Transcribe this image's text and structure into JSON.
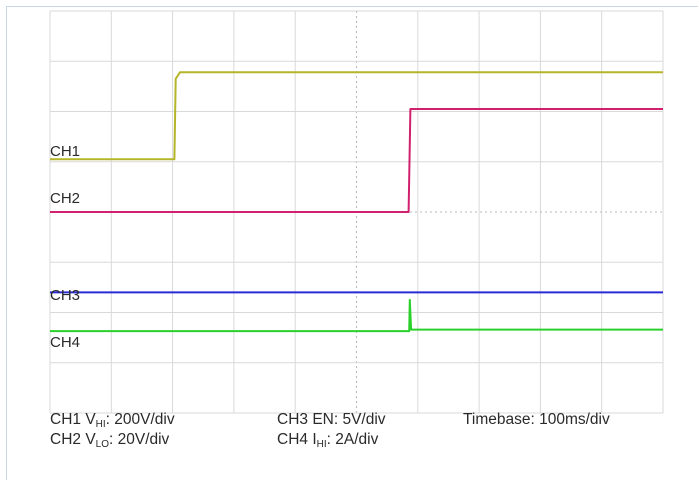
{
  "chart_data": {
    "type": "line",
    "title": "",
    "xlabel": "",
    "ylabel": "",
    "grid": true,
    "divisions": {
      "x": 10,
      "y": 8
    },
    "xlim": [
      0,
      10
    ],
    "ylim": [
      -4,
      4
    ],
    "series": [
      {
        "name": "CH1",
        "color": "#b5b52a",
        "points": [
          [
            0,
            1.05
          ],
          [
            2.03,
            1.05
          ],
          [
            2.05,
            2.65
          ],
          [
            2.12,
            2.78
          ],
          [
            10,
            2.78
          ]
        ]
      },
      {
        "name": "CH2",
        "color": "#d0206e",
        "points": [
          [
            0,
            0.0
          ],
          [
            5.85,
            0.0
          ],
          [
            5.88,
            2.05
          ],
          [
            10,
            2.05
          ]
        ]
      },
      {
        "name": "CH3",
        "color": "#2b2bd6",
        "points": [
          [
            0,
            -1.6
          ],
          [
            10,
            -1.6
          ]
        ]
      },
      {
        "name": "CH4",
        "color": "#2ad12a",
        "points": [
          [
            0,
            -2.37
          ],
          [
            5.86,
            -2.37
          ],
          [
            5.87,
            -1.75
          ],
          [
            5.89,
            -2.34
          ],
          [
            10,
            -2.34
          ]
        ]
      }
    ],
    "channel_labels": [
      "CH1",
      "CH2",
      "CH3",
      "CH4"
    ],
    "settings": {
      "ch1": {
        "prefix": "CH1 V",
        "sub": "HI",
        "value": ": 200V/div"
      },
      "ch2": {
        "prefix": "CH2 V",
        "sub": "LO",
        "value": ": 20V/div"
      },
      "ch3": {
        "text": "CH3 EN: 5V/div"
      },
      "ch4": {
        "prefix": "CH4 I",
        "sub": "HI",
        "value": ": 2A/div"
      },
      "timebase": {
        "text": "Timebase: 100ms/div"
      }
    },
    "colors": {
      "grid": "#d9d9d9",
      "grid_center": "#b8b8b8",
      "border": "#c9d6e3"
    }
  }
}
